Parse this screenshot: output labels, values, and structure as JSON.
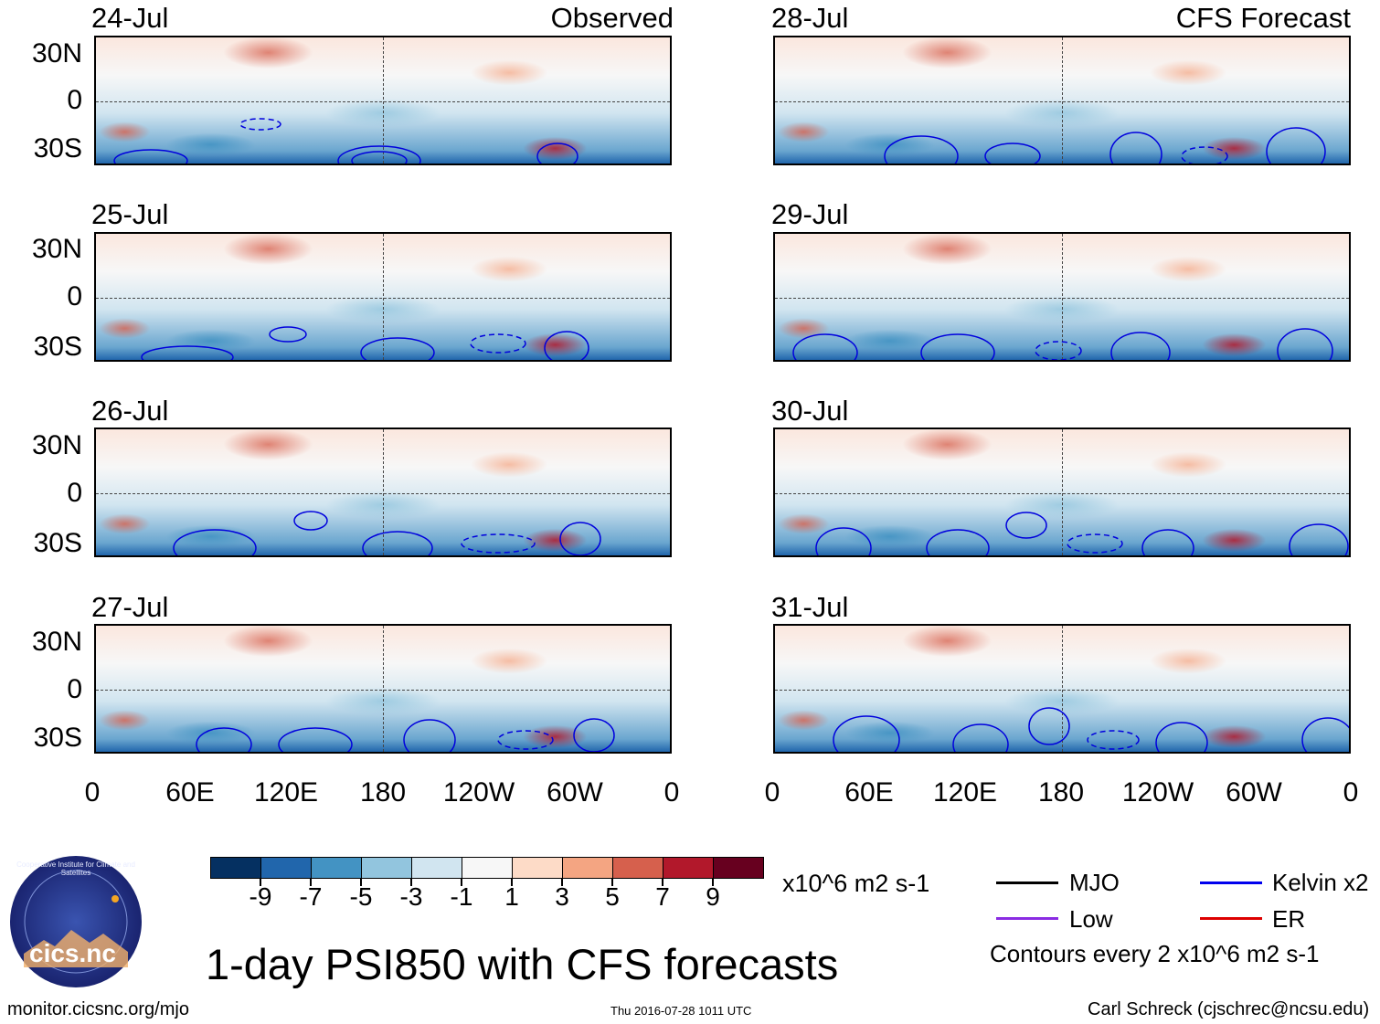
{
  "panels": [
    {
      "date": "24-Jul",
      "kind": "Observed"
    },
    {
      "date": "25-Jul",
      "kind": ""
    },
    {
      "date": "26-Jul",
      "kind": ""
    },
    {
      "date": "27-Jul",
      "kind": ""
    },
    {
      "date": "28-Jul",
      "kind": "CFS Forecast"
    },
    {
      "date": "29-Jul",
      "kind": ""
    },
    {
      "date": "30-Jul",
      "kind": ""
    },
    {
      "date": "31-Jul",
      "kind": ""
    }
  ],
  "lat_labels": [
    "30N",
    "0",
    "30S"
  ],
  "lon_labels": [
    "0",
    "60E",
    "120E",
    "180",
    "120W",
    "60W",
    "0"
  ],
  "colorbar": {
    "colors": [
      "#053061",
      "#2166ac",
      "#4393c3",
      "#92c5de",
      "#d1e5f0",
      "#f7f7f7",
      "#fddbc7",
      "#f4a582",
      "#d6604d",
      "#b2182b",
      "#67001f"
    ],
    "labels": [
      "-9",
      "-7",
      "-5",
      "-3",
      "-1",
      "1",
      "3",
      "5",
      "7",
      "9"
    ],
    "units": "x10^6 m2 s-1"
  },
  "legend": {
    "items": [
      {
        "label": "MJO",
        "color": "#000000"
      },
      {
        "label": "Kelvin x2",
        "color": "#0000ee"
      },
      {
        "label": "Low",
        "color": "#8a2be2"
      },
      {
        "label": "ER",
        "color": "#dd0000"
      }
    ],
    "note": "Contours every 2 x10^6 m2 s-1"
  },
  "title": "1-day PSI850 with CFS forecasts",
  "logo_text": "cics.nc",
  "logo_ring_text": "Cooperative Institute for Climate and Satellites",
  "url": "monitor.cicsnc.org/mjo",
  "timestamp": "Thu 2016-07-28 1011 UTC",
  "credit": "Carl Schreck (cjschrec@ncsu.edu)"
}
